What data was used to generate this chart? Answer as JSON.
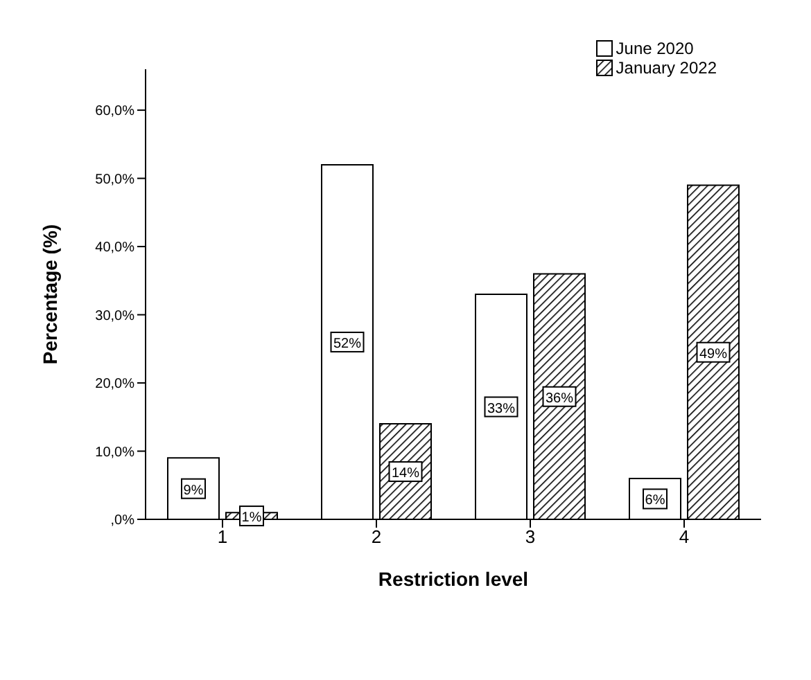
{
  "chart_data": {
    "type": "bar",
    "xlabel": "Restriction level",
    "ylabel": "Percentage (%)",
    "categories": [
      "1",
      "2",
      "3",
      "4"
    ],
    "series": [
      {
        "name": "June 2020",
        "color": "#ffffff",
        "values": [
          9,
          52,
          33,
          6
        ],
        "value_labels": [
          "9%",
          "52%",
          "33%",
          "6%"
        ]
      },
      {
        "name": "January 2022",
        "color": "#000000",
        "values": [
          1,
          14,
          36,
          49
        ],
        "value_labels": [
          "1%",
          "14%",
          "36%",
          "49%"
        ]
      }
    ],
    "ylim": [
      0,
      66
    ],
    "yticks": [
      {
        "value": 0,
        "label": ",0%"
      },
      {
        "value": 10,
        "label": "10,0%"
      },
      {
        "value": 20,
        "label": "20,0%"
      },
      {
        "value": 30,
        "label": "30,0%"
      },
      {
        "value": 40,
        "label": "40,0%"
      },
      {
        "value": 50,
        "label": "50,0%"
      },
      {
        "value": 60,
        "label": "60,0%"
      }
    ],
    "grid": false,
    "legend": "top right"
  }
}
